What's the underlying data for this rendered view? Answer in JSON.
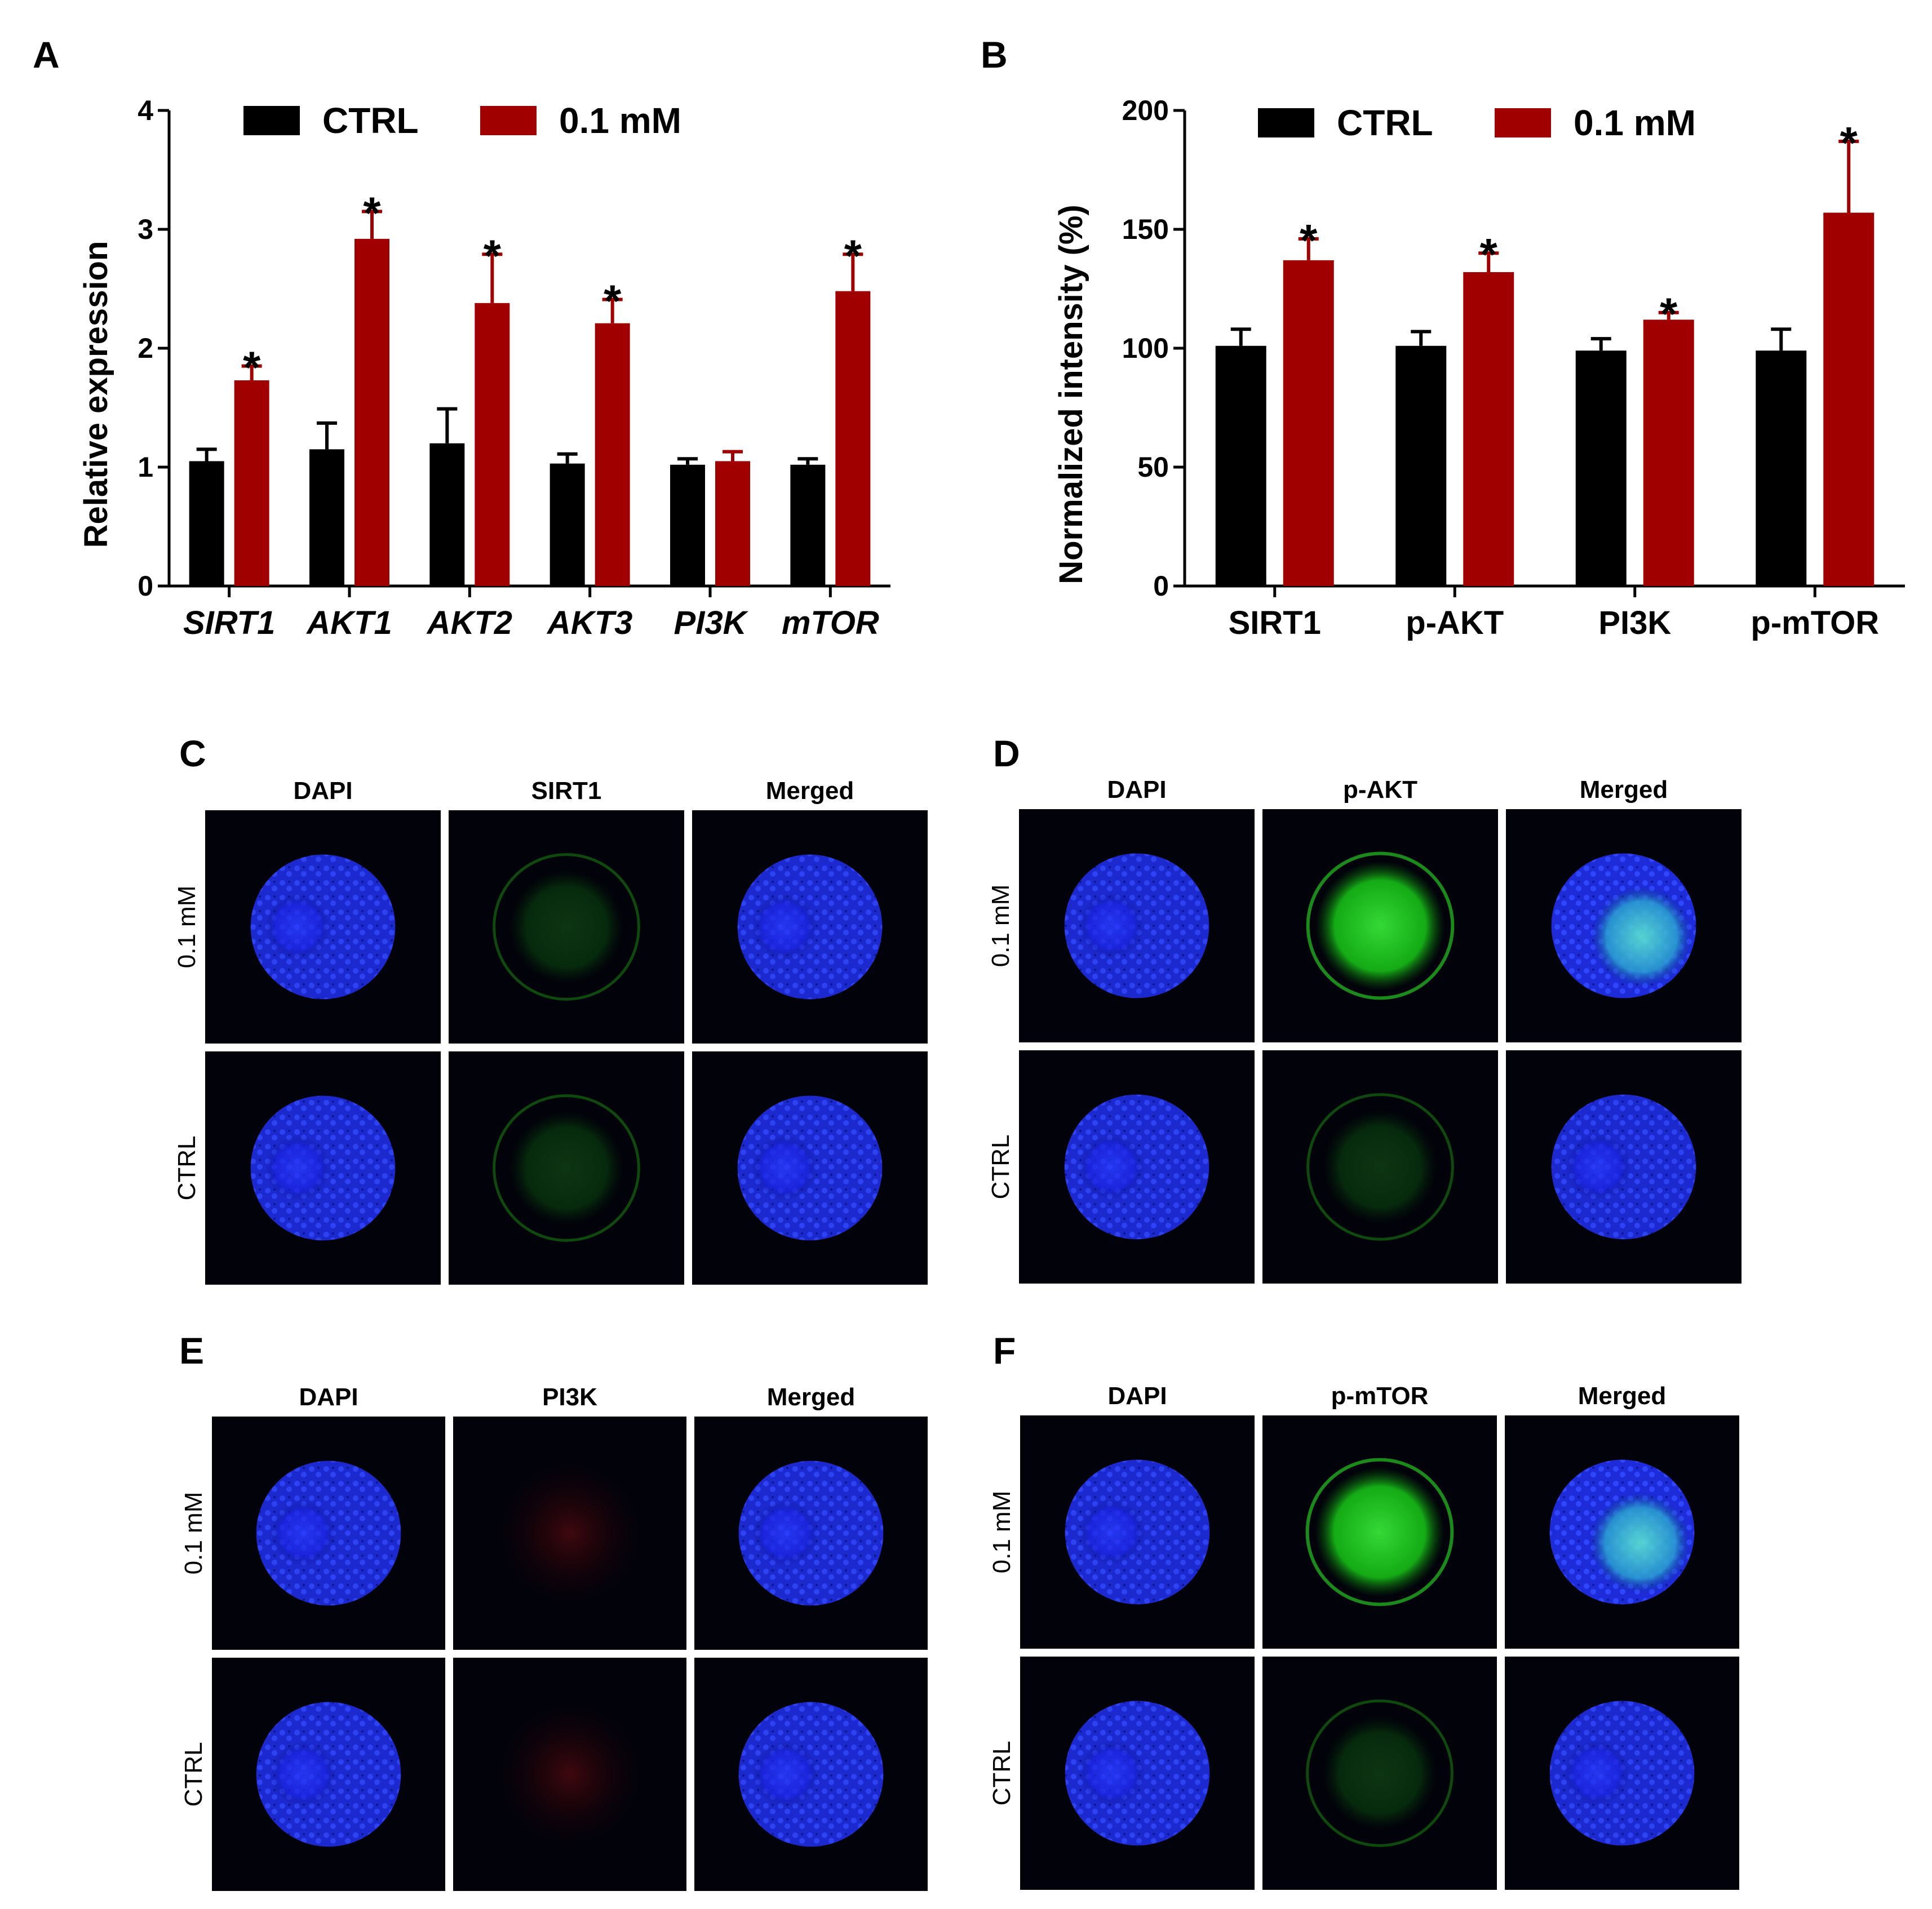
{
  "chart_data": [
    {
      "panel": "A",
      "type": "bar",
      "ylabel": "Relative expression",
      "ylim": [
        0,
        4
      ],
      "yticks": [
        "0",
        "1",
        "2",
        "3",
        "4"
      ],
      "categories": [
        "SIRT1",
        "AKT1",
        "AKT2",
        "AKT3",
        "PI3K",
        "mTOR"
      ],
      "category_style": "italic",
      "legend": "top",
      "series": [
        {
          "name": "CTRL",
          "color": "#000000",
          "values": [
            1.05,
            1.15,
            1.2,
            1.03,
            1.02,
            1.02
          ],
          "errors": [
            0.1,
            0.22,
            0.29,
            0.08,
            0.05,
            0.05
          ]
        },
        {
          "name": "0.1 mM",
          "color": "#a00000",
          "values": [
            1.73,
            2.92,
            2.38,
            2.21,
            1.05,
            2.48
          ],
          "errors": [
            0.12,
            0.23,
            0.41,
            0.2,
            0.08,
            0.31
          ]
        }
      ],
      "significance": [
        "*",
        "*",
        "*",
        "*",
        "",
        "*"
      ]
    },
    {
      "panel": "B",
      "type": "bar",
      "ylabel": "Normalized intensity (%)",
      "ylim": [
        0,
        200
      ],
      "yticks": [
        "0",
        "50",
        "100",
        "150",
        "200"
      ],
      "categories": [
        "SIRT1",
        "p-AKT",
        "PI3K",
        "p-mTOR"
      ],
      "category_style": "normal",
      "legend": "top",
      "series": [
        {
          "name": "CTRL",
          "color": "#000000",
          "values": [
            101,
            101,
            99,
            99
          ],
          "errors": [
            7,
            6,
            5,
            9
          ]
        },
        {
          "name": "0.1 mM",
          "color": "#a00000",
          "values": [
            137,
            132,
            112,
            157
          ],
          "errors": [
            9,
            8,
            3,
            30
          ]
        }
      ],
      "significance": [
        "*",
        "*",
        "*",
        "*"
      ]
    }
  ],
  "micrographs": [
    {
      "panel": "C",
      "columns": [
        "DAPI",
        "SIRT1",
        "Merged"
      ],
      "rows": [
        "0.1 mM",
        "CTRL"
      ]
    },
    {
      "panel": "D",
      "columns": [
        "DAPI",
        "p-AKT",
        "Merged"
      ],
      "rows": [
        "0.1 mM",
        "CTRL"
      ]
    },
    {
      "panel": "E",
      "columns": [
        "DAPI",
        "PI3K",
        "Merged"
      ],
      "rows": [
        "0.1 mM",
        "CTRL"
      ]
    },
    {
      "panel": "F",
      "columns": [
        "DAPI",
        "p-mTOR",
        "Merged"
      ],
      "rows": [
        "0.1 mM",
        "CTRL"
      ]
    }
  ]
}
